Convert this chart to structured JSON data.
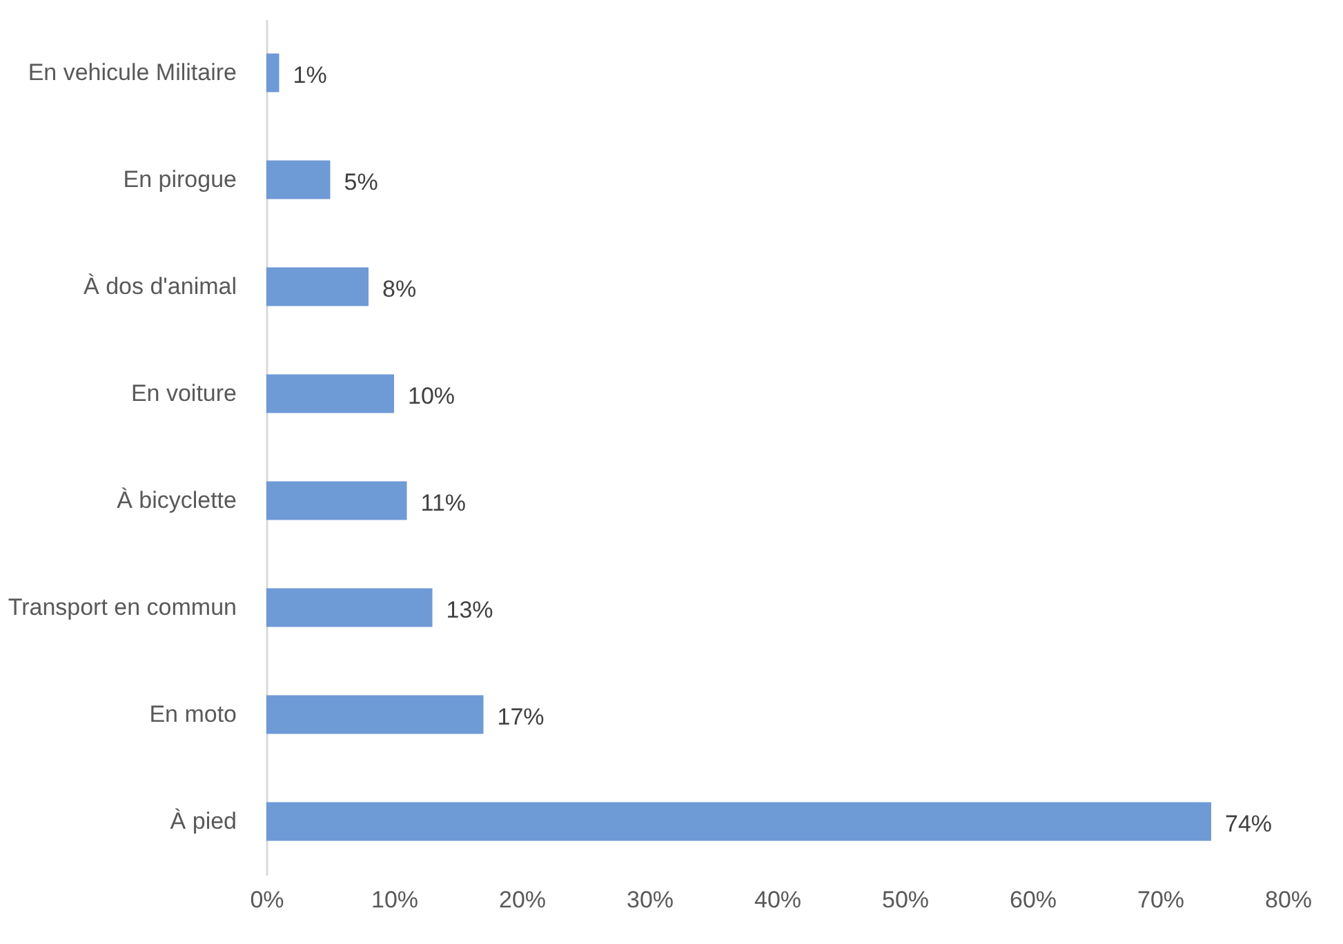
{
  "chart_data": {
    "type": "bar",
    "categories": [
      "En vehicule Militaire",
      "En pirogue",
      "À dos d'animal",
      "En voiture",
      "À bicyclette",
      "Transport en commun",
      "En moto",
      "À pied"
    ],
    "values": [
      1,
      5,
      8,
      10,
      11,
      13,
      17,
      74
    ],
    "value_labels": [
      "1%",
      "5%",
      "8%",
      "10%",
      "11%",
      "13%",
      "17%",
      "74%"
    ],
    "color": "#6e9ad6",
    "xlim": [
      0,
      80
    ],
    "xticks": [
      {
        "value": 0,
        "label": "0%"
      },
      {
        "value": 10,
        "label": "10%"
      },
      {
        "value": 20,
        "label": "20%"
      },
      {
        "value": 30,
        "label": "30%"
      },
      {
        "value": 40,
        "label": "40%"
      },
      {
        "value": 50,
        "label": "50%"
      },
      {
        "value": 60,
        "label": "60%"
      },
      {
        "value": 70,
        "label": "70%"
      },
      {
        "value": 80,
        "label": "80%"
      }
    ],
    "orientation": "horizontal"
  }
}
